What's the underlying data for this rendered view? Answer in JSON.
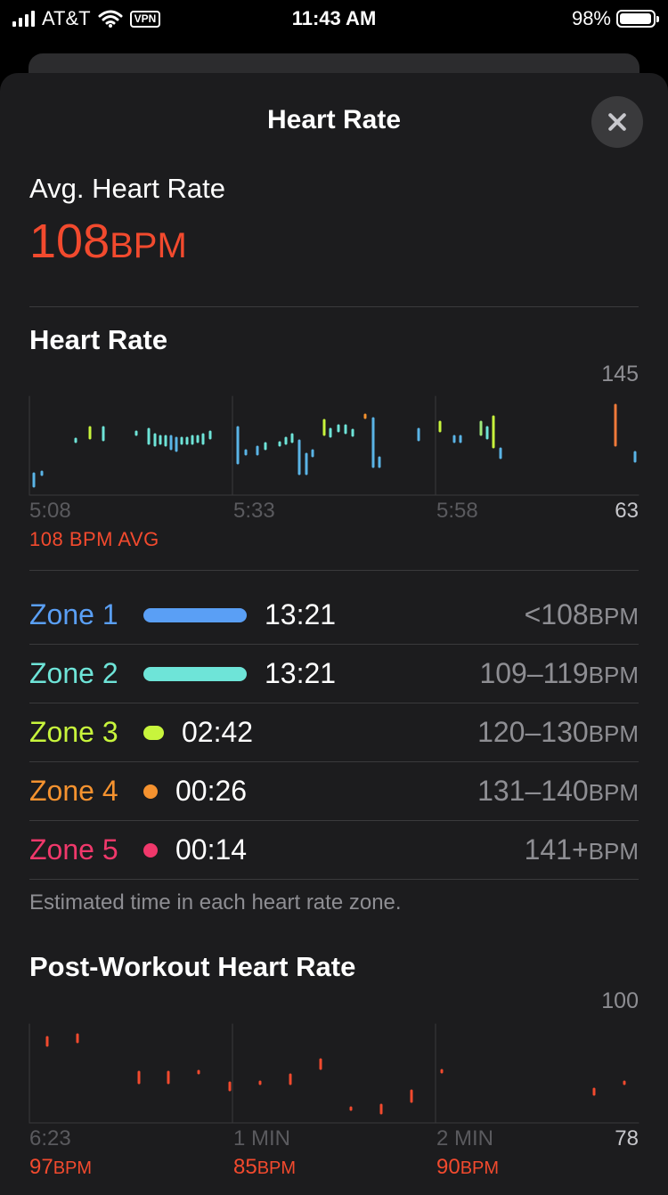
{
  "status": {
    "carrier": "AT&T",
    "vpn": "VPN",
    "time": "11:43 AM",
    "battery": "98%",
    "battery_level": 0.98
  },
  "sheet": {
    "title": "Heart Rate",
    "close_icon": "close-icon"
  },
  "summary": {
    "label": "Avg. Heart Rate",
    "value": "108",
    "unit": "BPM"
  },
  "hr_chart": {
    "title": "Heart Rate",
    "ymax_label": "145",
    "ymin_label": "63",
    "xticks": [
      "5:08",
      "5:33",
      "5:58"
    ],
    "avg_label": "108 BPM AVG"
  },
  "zones": [
    {
      "name": "Zone 1",
      "time": "13:21",
      "range": "<108",
      "unit": "BPM",
      "color": "#5a9ff5",
      "fraction": 1.0
    },
    {
      "name": "Zone 2",
      "time": "13:21",
      "range": "109–119",
      "unit": "BPM",
      "color": "#6ee4d8",
      "fraction": 1.0
    },
    {
      "name": "Zone 3",
      "time": "02:42",
      "range": "120–130",
      "unit": "BPM",
      "color": "#c8f53c",
      "fraction": 0.2
    },
    {
      "name": "Zone 4",
      "time": "00:26",
      "range": "131–140",
      "unit": "BPM",
      "color": "#f5922f",
      "fraction": 0.03
    },
    {
      "name": "Zone 5",
      "time": "00:14",
      "range": "141+",
      "unit": "BPM",
      "color": "#f0386b",
      "fraction": 0.02
    }
  ],
  "zone_note": "Estimated time in each heart rate zone.",
  "post_chart": {
    "title": "Post-Workout Heart Rate",
    "ymax_label": "100",
    "ymin_label": "78",
    "xticks": [
      "6:23",
      "1 MIN",
      "2 MIN"
    ],
    "points": [
      {
        "value": "97",
        "unit": "BPM"
      },
      {
        "value": "85",
        "unit": "BPM"
      },
      {
        "value": "90",
        "unit": "BPM"
      }
    ]
  }
}
